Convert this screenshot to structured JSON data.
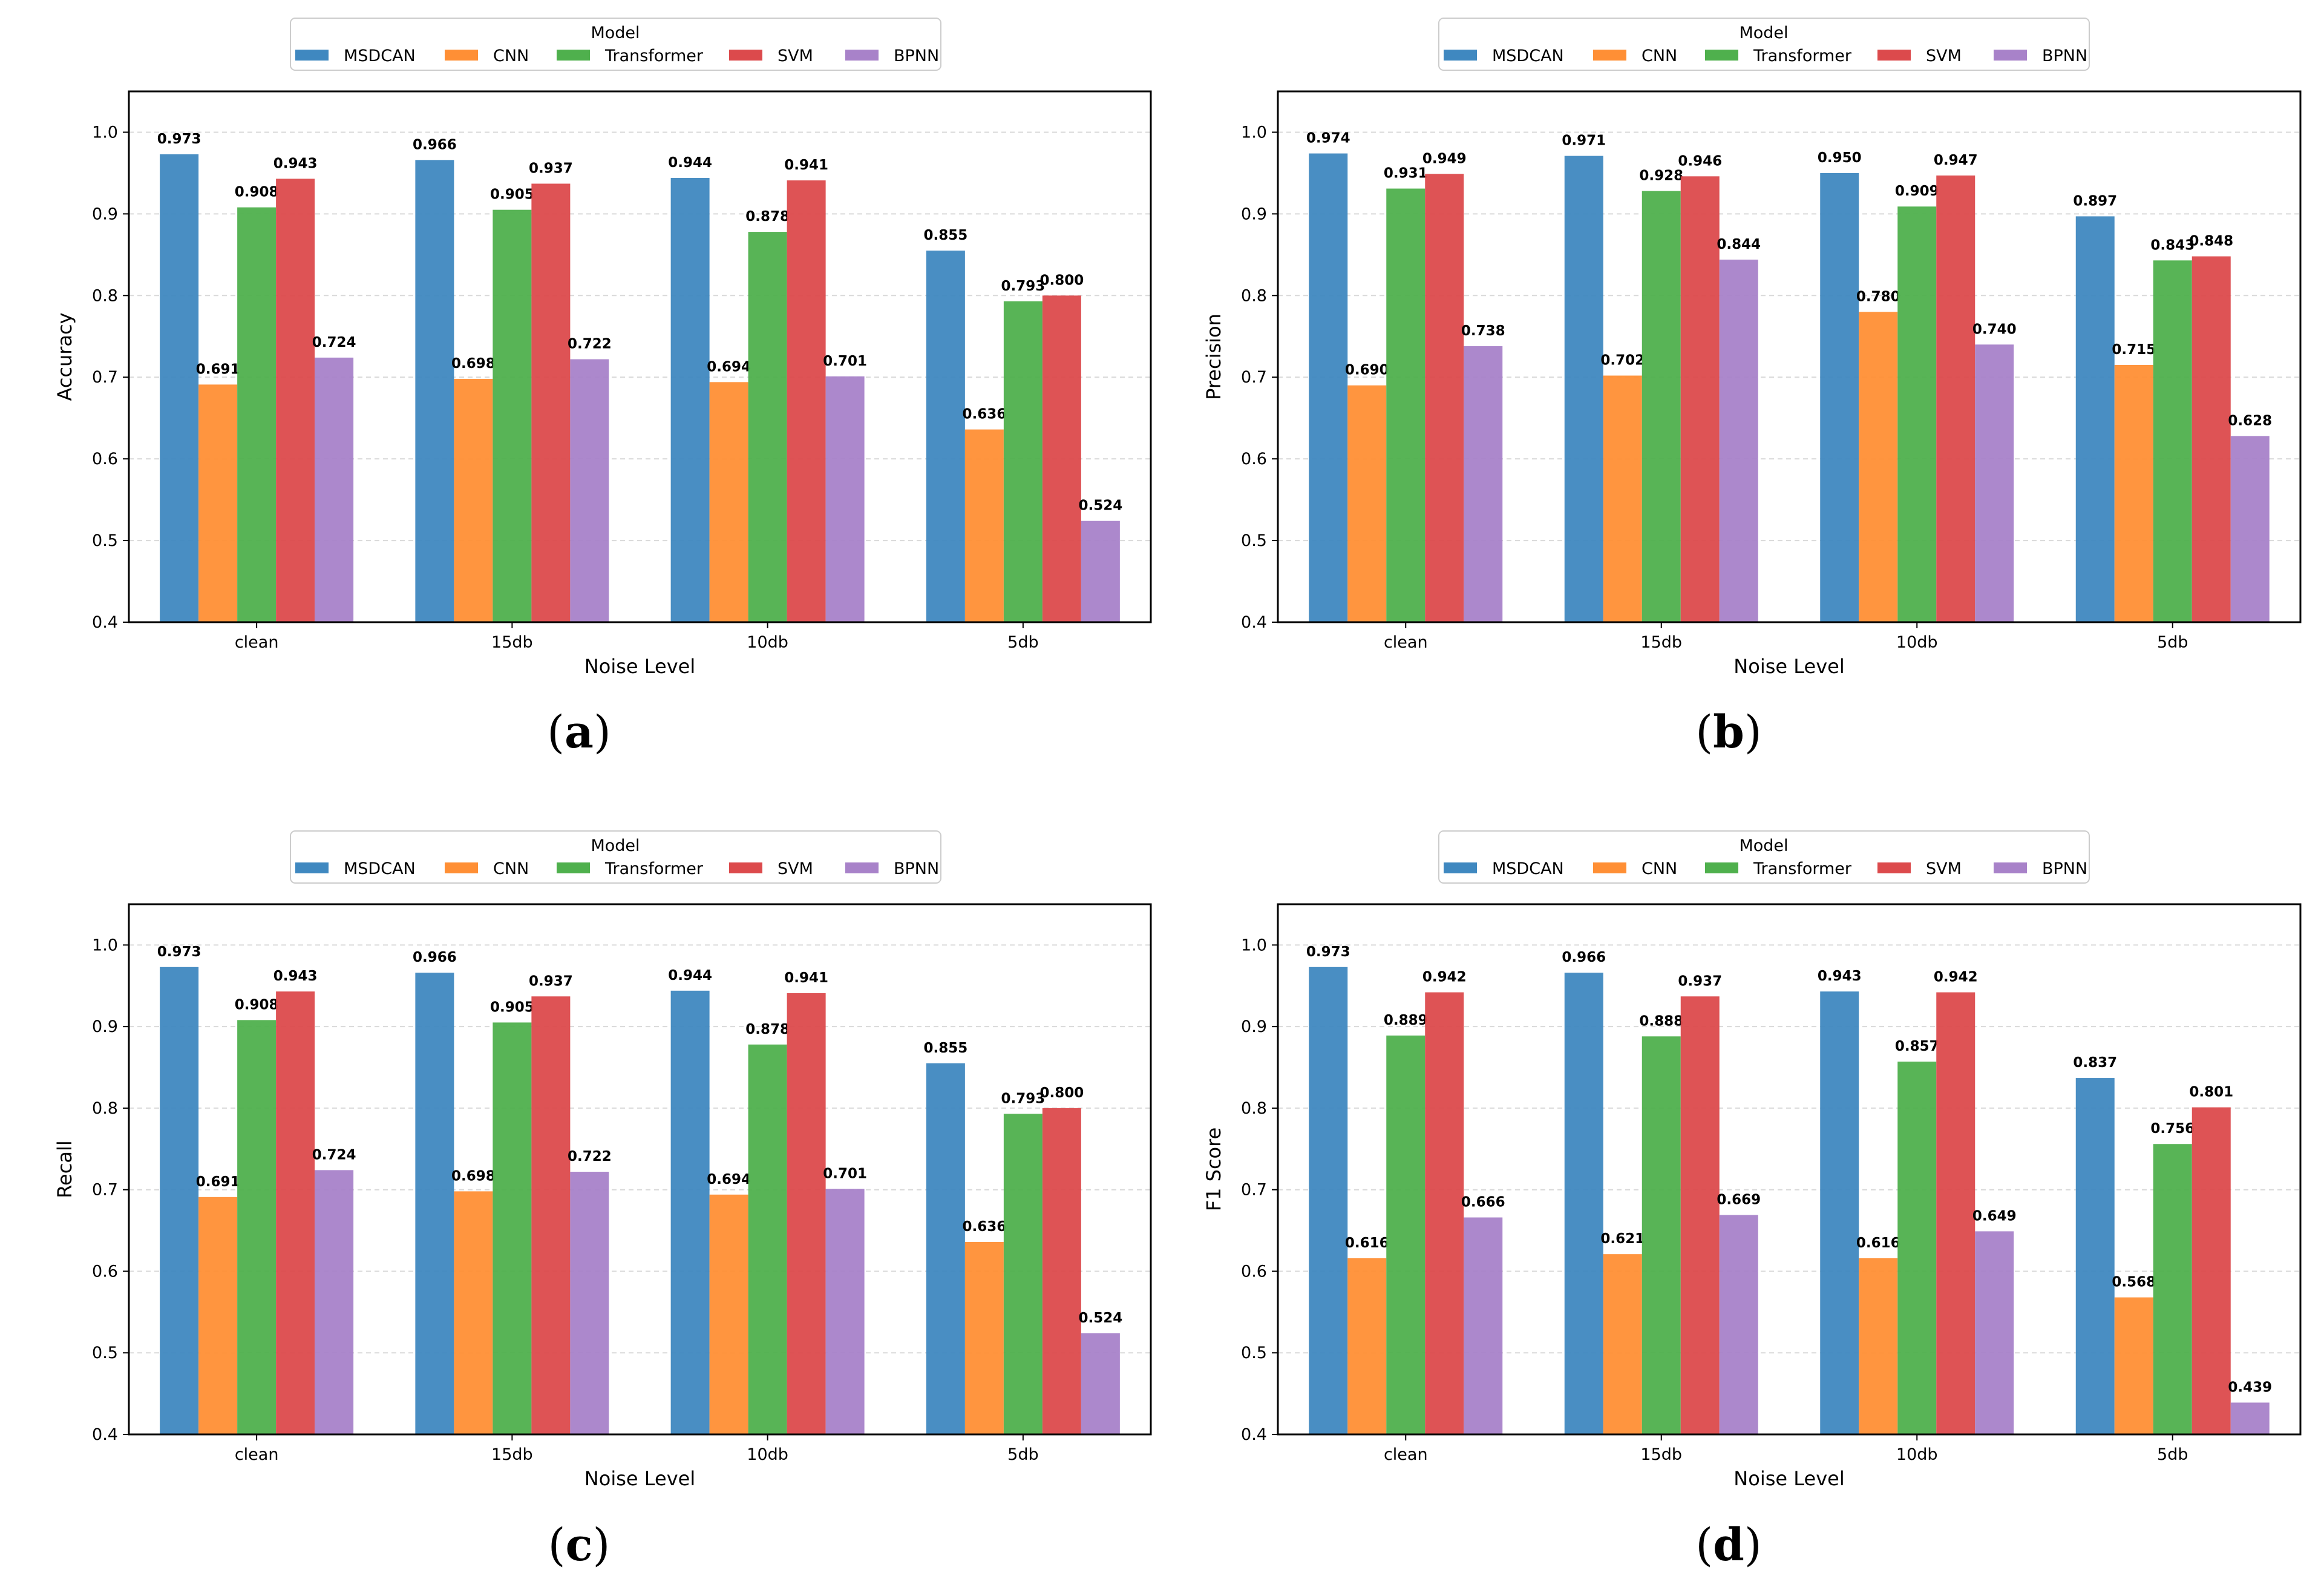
{
  "figure": {
    "legend_title": "Model",
    "x_axis_label": "Noise Level",
    "model_colors": [
      "#3f88c0",
      "#ff8f35",
      "#4fb04d",
      "#dc4a4c",
      "#a882c9"
    ]
  },
  "chart_data": [
    {
      "type": "bar",
      "caption": "a",
      "title": "",
      "xlabel": "Noise Level",
      "ylabel": "Accuracy",
      "ylim": [
        0.4,
        1.05
      ],
      "yticks": [
        "0.4",
        "0.5",
        "0.6",
        "0.7",
        "0.8",
        "0.9",
        "1.0"
      ],
      "legend_title": "Model",
      "legend_position": "top-center",
      "categories": [
        "clean",
        "15db",
        "10db",
        "5db"
      ],
      "series": [
        {
          "name": "MSDCAN",
          "values": [
            0.973,
            0.966,
            0.944,
            0.855
          ],
          "labels": [
            "0.973",
            "0.966",
            "0.944",
            "0.855"
          ]
        },
        {
          "name": "CNN",
          "values": [
            0.691,
            0.698,
            0.694,
            0.636
          ],
          "labels": [
            "0.691",
            "0.698",
            "0.694",
            "0.636"
          ]
        },
        {
          "name": "Transformer",
          "values": [
            0.908,
            0.905,
            0.878,
            0.793
          ],
          "labels": [
            "0.908",
            "0.905",
            "0.878",
            "0.793"
          ]
        },
        {
          "name": "SVM",
          "values": [
            0.943,
            0.937,
            0.941,
            0.8
          ],
          "labels": [
            "0.943",
            "0.937",
            "0.941",
            "0.800"
          ]
        },
        {
          "name": "BPNN",
          "values": [
            0.724,
            0.722,
            0.701,
            0.524
          ],
          "labels": [
            "0.724",
            "0.722",
            "0.701",
            "0.524"
          ]
        }
      ]
    },
    {
      "type": "bar",
      "caption": "b",
      "title": "",
      "xlabel": "Noise Level",
      "ylabel": "Precision",
      "ylim": [
        0.4,
        1.05
      ],
      "yticks": [
        "0.4",
        "0.5",
        "0.6",
        "0.7",
        "0.8",
        "0.9",
        "1.0"
      ],
      "legend_title": "Model",
      "legend_position": "top-center",
      "categories": [
        "clean",
        "15db",
        "10db",
        "5db"
      ],
      "series": [
        {
          "name": "MSDCAN",
          "values": [
            0.974,
            0.971,
            0.95,
            0.897
          ],
          "labels": [
            "0.974",
            "0.971",
            "0.950",
            "0.897"
          ]
        },
        {
          "name": "CNN",
          "values": [
            0.69,
            0.702,
            0.78,
            0.715
          ],
          "labels": [
            "0.690",
            "0.702",
            "0.780",
            "0.715"
          ]
        },
        {
          "name": "Transformer",
          "values": [
            0.931,
            0.928,
            0.909,
            0.843
          ],
          "labels": [
            "0.931",
            "0.928",
            "0.909",
            "0.843"
          ]
        },
        {
          "name": "SVM",
          "values": [
            0.949,
            0.946,
            0.947,
            0.848
          ],
          "labels": [
            "0.949",
            "0.946",
            "0.947",
            "0.848"
          ]
        },
        {
          "name": "BPNN",
          "values": [
            0.738,
            0.844,
            0.74,
            0.628
          ],
          "labels": [
            "0.738",
            "0.844",
            "0.740",
            "0.628"
          ]
        }
      ]
    },
    {
      "type": "bar",
      "caption": "c",
      "title": "",
      "xlabel": "Noise Level",
      "ylabel": "Recall",
      "ylim": [
        0.4,
        1.05
      ],
      "yticks": [
        "0.4",
        "0.5",
        "0.6",
        "0.7",
        "0.8",
        "0.9",
        "1.0"
      ],
      "legend_title": "Model",
      "legend_position": "top-center",
      "categories": [
        "clean",
        "15db",
        "10db",
        "5db"
      ],
      "series": [
        {
          "name": "MSDCAN",
          "values": [
            0.973,
            0.966,
            0.944,
            0.855
          ],
          "labels": [
            "0.973",
            "0.966",
            "0.944",
            "0.855"
          ]
        },
        {
          "name": "CNN",
          "values": [
            0.691,
            0.698,
            0.694,
            0.636
          ],
          "labels": [
            "0.691",
            "0.698",
            "0.694",
            "0.636"
          ]
        },
        {
          "name": "Transformer",
          "values": [
            0.908,
            0.905,
            0.878,
            0.793
          ],
          "labels": [
            "0.908",
            "0.905",
            "0.878",
            "0.793"
          ]
        },
        {
          "name": "SVM",
          "values": [
            0.943,
            0.937,
            0.941,
            0.8
          ],
          "labels": [
            "0.943",
            "0.937",
            "0.941",
            "0.800"
          ]
        },
        {
          "name": "BPNN",
          "values": [
            0.724,
            0.722,
            0.701,
            0.524
          ],
          "labels": [
            "0.724",
            "0.722",
            "0.701",
            "0.524"
          ]
        }
      ]
    },
    {
      "type": "bar",
      "caption": "d",
      "title": "",
      "xlabel": "Noise Level",
      "ylabel": "F1 Score",
      "ylim": [
        0.4,
        1.05
      ],
      "yticks": [
        "0.4",
        "0.5",
        "0.6",
        "0.7",
        "0.8",
        "0.9",
        "1.0"
      ],
      "legend_title": "Model",
      "legend_position": "top-center",
      "categories": [
        "clean",
        "15db",
        "10db",
        "5db"
      ],
      "series": [
        {
          "name": "MSDCAN",
          "values": [
            0.973,
            0.966,
            0.943,
            0.837
          ],
          "labels": [
            "0.973",
            "0.966",
            "0.943",
            "0.837"
          ]
        },
        {
          "name": "CNN",
          "values": [
            0.616,
            0.621,
            0.616,
            0.568
          ],
          "labels": [
            "0.616",
            "0.621",
            "0.616",
            "0.568"
          ]
        },
        {
          "name": "Transformer",
          "values": [
            0.889,
            0.888,
            0.857,
            0.756
          ],
          "labels": [
            "0.889",
            "0.888",
            "0.857",
            "0.756"
          ]
        },
        {
          "name": "SVM",
          "values": [
            0.942,
            0.937,
            0.942,
            0.801
          ],
          "labels": [
            "0.942",
            "0.937",
            "0.942",
            "0.801"
          ]
        },
        {
          "name": "BPNN",
          "values": [
            0.666,
            0.669,
            0.649,
            0.439
          ],
          "labels": [
            "0.666",
            "0.669",
            "0.649",
            "0.439"
          ]
        }
      ]
    }
  ]
}
